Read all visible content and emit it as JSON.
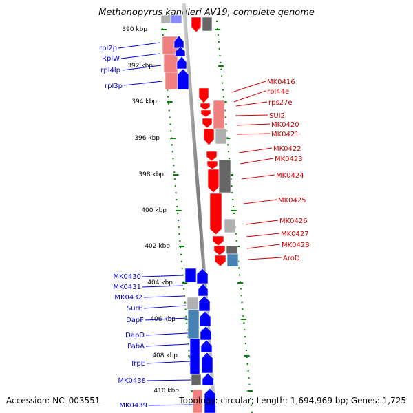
{
  "title": "Methanopyrus kandleri AV19, complete genome",
  "footer": {
    "accession": "Accession: NC_003551",
    "summary": "Topology: circular; Length: 1,694,969 bp; Genes: 1,725"
  },
  "ticks": [
    "390 kbp",
    "392 kbp",
    "394 kbp",
    "396 kbp",
    "398 kbp",
    "400 kbp",
    "402 kbp",
    "404 kbp",
    "406 kbp",
    "408 kbp",
    "410 kbp"
  ],
  "left_genes": [
    "rpl2p",
    "RplW",
    "rpl4lp",
    "rpl3p",
    "MK0430",
    "MK0431",
    "MK0432",
    "SurE",
    "DapF",
    "DapD",
    "PabA",
    "TrpE",
    "MK0438",
    "MK0439"
  ],
  "right_genes": [
    "MK0416",
    "rpl44e",
    "rps27e",
    "SUI2",
    "MK0420",
    "MK0421",
    "MK0422",
    "MK0423",
    "MK0424",
    "MK0425",
    "MK0426",
    "MK0427",
    "MK0428",
    "AroD"
  ],
  "colors": {
    "forward": "#0000ff",
    "reverse": "#ff0000",
    "backbone": "#888888",
    "ticks": "#008000",
    "pink": "#f08080",
    "dark_gray": "#666666",
    "light_gray": "#b0b0b0",
    "steel_blue": "#4682b4"
  }
}
